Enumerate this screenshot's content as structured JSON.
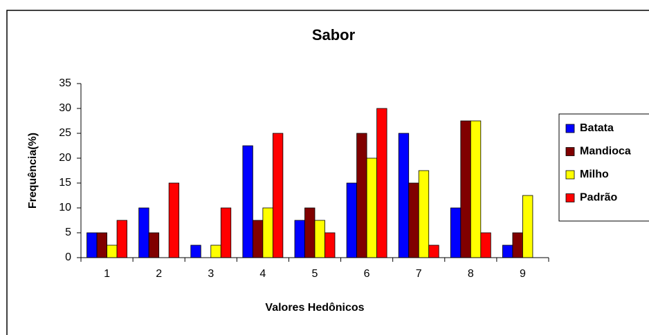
{
  "chart_data": {
    "type": "bar",
    "title": "Sabor",
    "x_label": "Valores Hedônicos",
    "y_label": "Frequência(%)",
    "categories": [
      "1",
      "2",
      "3",
      "4",
      "5",
      "6",
      "7",
      "8",
      "9"
    ],
    "series": [
      {
        "name": "Batata",
        "color": "#0000ff",
        "values": [
          5,
          10,
          2.5,
          22.5,
          7.5,
          15,
          25,
          10,
          2.5
        ]
      },
      {
        "name": "Mandioca",
        "color": "#800000",
        "values": [
          5,
          5,
          0,
          7.5,
          10,
          25,
          15,
          27.5,
          5
        ]
      },
      {
        "name": "Milho",
        "color": "#ffff00",
        "values": [
          2.5,
          0,
          2.5,
          10,
          7.5,
          20,
          17.5,
          27.5,
          12.5
        ]
      },
      {
        "name": "Padrão",
        "color": "#ff0000",
        "values": [
          7.5,
          15,
          10,
          25,
          5,
          30,
          2.5,
          5,
          0
        ]
      }
    ],
    "ylim": [
      0,
      35
    ],
    "yticks": [
      0,
      5,
      10,
      15,
      20,
      25,
      30,
      35
    ],
    "grid": false,
    "legend": "right"
  }
}
